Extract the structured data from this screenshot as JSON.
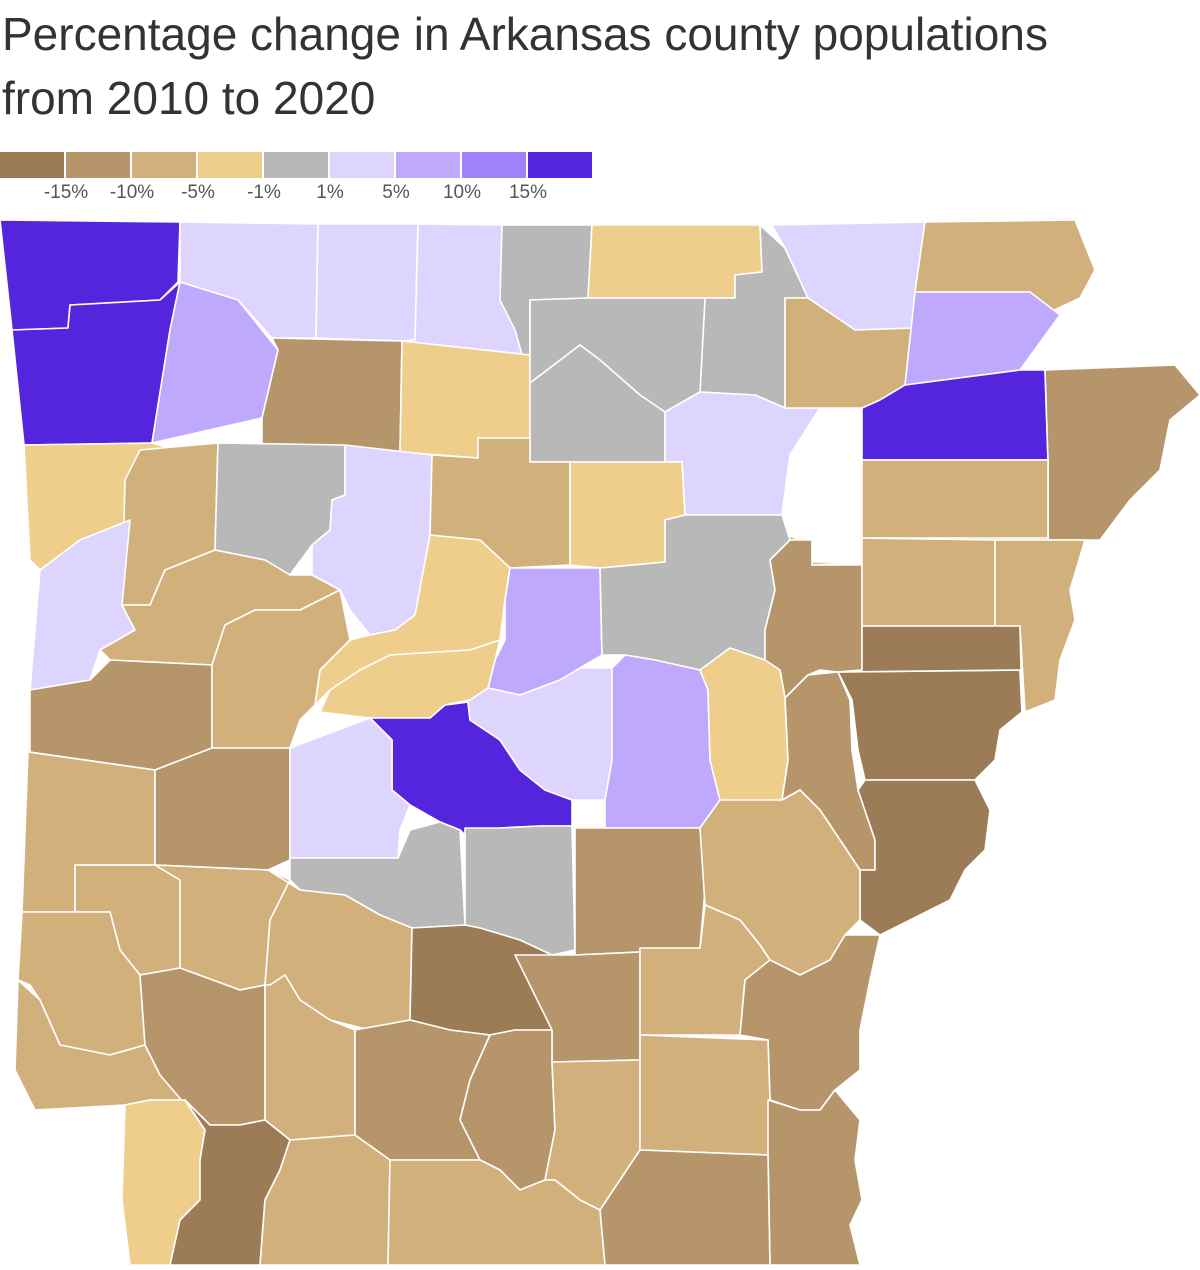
{
  "title": "Percentage change in Arkansas county populations from 2010 to 2020",
  "legend": {
    "colors": [
      "#9c7c56",
      "#b7956a",
      "#d2b07b",
      "#efcd8b",
      "#b8b8b8",
      "#ded5fe",
      "#bfa9fd",
      "#9f81fb",
      "#5425dc"
    ],
    "labels": [
      "-15%",
      "-10%",
      "-5%",
      "-1%",
      "1%",
      "5%",
      "10%",
      "15%"
    ]
  },
  "bins": {
    "lt_-15": "#9c7c56",
    "-15_-10": "#b7956a",
    "-10_-5": "#d2b07b",
    "-5_-1": "#efcd8b",
    "-1_1": "#b8b8b8",
    "1_5": "#ded5fe",
    "5_10": "#bfa9fd",
    "10_15": "#9f81fb",
    "gt_15": "#5425dc"
  }
}
